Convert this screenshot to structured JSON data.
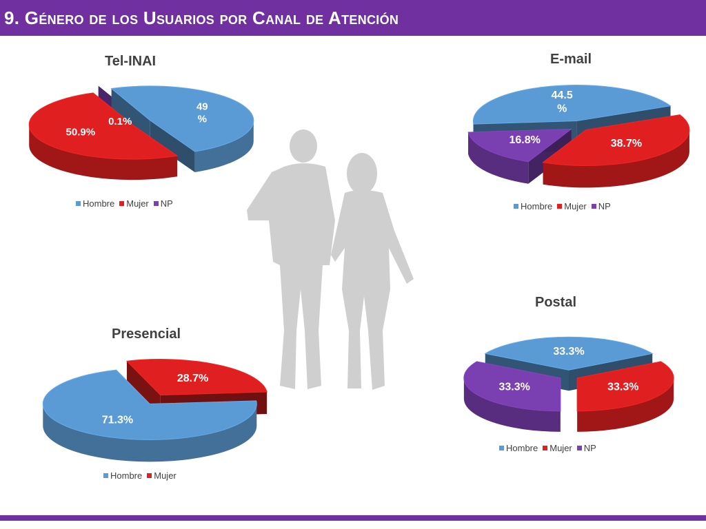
{
  "header": {
    "title": "9. Género de los Usuarios por Canal de Atención"
  },
  "colors": {
    "Hombre": "#5b9bd5",
    "Mujer": "#e02020",
    "NP": "#7a3fb0",
    "accent": "#7030a0"
  },
  "chart_data": [
    {
      "type": "pie",
      "title": "Tel-INAI",
      "categories": [
        "Hombre",
        "Mujer",
        "NP"
      ],
      "values": [
        49,
        50.9,
        0.1
      ],
      "labels": [
        "49 %",
        "50.9%",
        "0.1%"
      ],
      "legend": "bottom"
    },
    {
      "type": "pie",
      "title": "E-mail",
      "categories": [
        "Hombre",
        "Mujer",
        "NP"
      ],
      "values": [
        44.5,
        38.7,
        16.8
      ],
      "labels": [
        "44.5 %",
        "38.7%",
        "16.8%"
      ],
      "legend": "bottom"
    },
    {
      "type": "pie",
      "title": "Presencial",
      "categories": [
        "Hombre",
        "Mujer"
      ],
      "values": [
        71.3,
        28.7
      ],
      "labels": [
        "71.3%",
        "28.7%"
      ],
      "legend": "bottom"
    },
    {
      "type": "pie",
      "title": "Postal",
      "categories": [
        "Hombre",
        "Mujer",
        "NP"
      ],
      "values": [
        33.3,
        33.3,
        33.3
      ],
      "labels": [
        "33.3%",
        "33.3%",
        "33.3%"
      ],
      "legend": "bottom"
    }
  ]
}
